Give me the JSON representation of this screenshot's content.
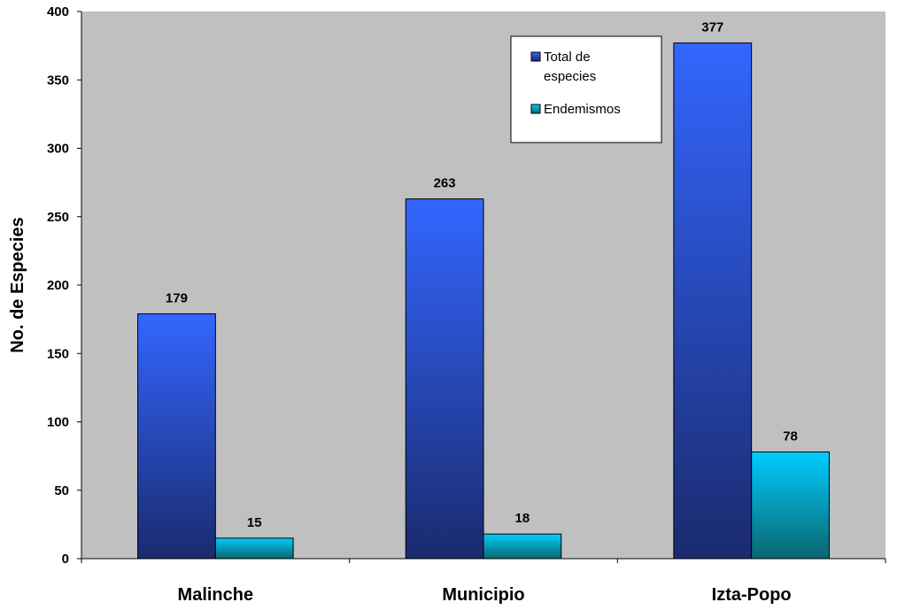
{
  "chart_data": {
    "type": "bar",
    "categories": [
      "Malinche",
      "Municipio",
      "Izta-Popo"
    ],
    "series": [
      {
        "name": "Total de especies",
        "values": [
          179,
          263,
          377
        ]
      },
      {
        "name": "Endemismos",
        "values": [
          15,
          18,
          78
        ]
      }
    ],
    "data_labels": [
      [
        "179",
        "263",
        "377"
      ],
      [
        "15",
        "18",
        "78"
      ]
    ],
    "ylabel": "No. de Especies",
    "ylim": [
      0,
      400
    ],
    "yticks": [
      "0",
      "50",
      "100",
      "150",
      "200",
      "250",
      "300",
      "350",
      "400"
    ],
    "ytick_values": [
      0,
      50,
      100,
      150,
      200,
      250,
      300,
      350,
      400
    ],
    "legend_lines": [
      [
        "Total de",
        "especies"
      ],
      [
        "Endemismos"
      ]
    ],
    "legend_position": "top-right",
    "grid": false
  },
  "colors": {
    "plot_background": "#c0c0c0",
    "series1_top": "#3366ff",
    "series1_bottom": "#1a2a6e",
    "series2_top": "#00ccff",
    "series2_bottom": "#0b6670"
  }
}
